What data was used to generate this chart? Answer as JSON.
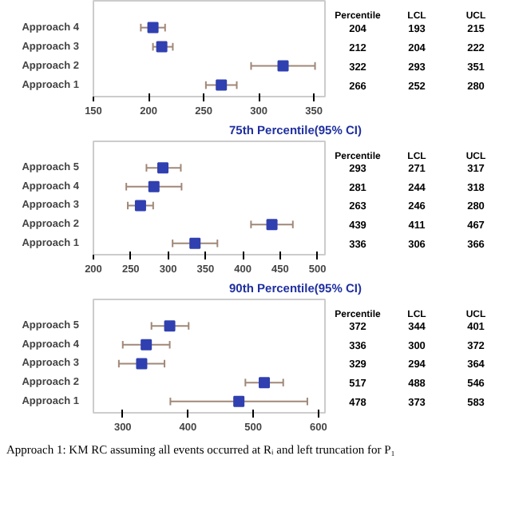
{
  "chart_data": [
    {
      "type": "scatter",
      "orientation": "horizontal",
      "marker": "square",
      "grid": false,
      "categories": [
        "Approach 4",
        "Approach 3",
        "Approach 2",
        "Approach 1"
      ],
      "series": [
        {
          "color": "#3040b0",
          "values": [
            204,
            212,
            322,
            266
          ],
          "errors": [
            [
              193,
              215
            ],
            [
              204,
              222
            ],
            [
              293,
              351
            ],
            [
              252,
              280
            ]
          ]
        }
      ],
      "annotations": [
        "Percentile",
        "LCL",
        "UCL",
        "204",
        "193",
        "215",
        "212",
        "204",
        "222",
        "322",
        "293",
        "351",
        "266",
        "252",
        "280"
      ],
      "xlim": [
        150,
        360
      ],
      "xticks": [
        150,
        200,
        250,
        300,
        350
      ]
    },
    {
      "type": "scatter",
      "orientation": "horizontal",
      "marker": "square",
      "grid": false,
      "title": "75th Percentile(95% CI)",
      "categories": [
        "Approach 5",
        "Approach 4",
        "Approach 3",
        "Approach 2",
        "Approach 1"
      ],
      "series": [
        {
          "color": "#3040b0",
          "values": [
            293,
            281,
            263,
            439,
            336
          ],
          "errors": [
            [
              271,
              317
            ],
            [
              244,
              318
            ],
            [
              246,
              280
            ],
            [
              411,
              467
            ],
            [
              306,
              366
            ]
          ]
        }
      ],
      "annotations": [
        "Percentile",
        "LCL",
        "UCL",
        "293",
        "271",
        "317",
        "281",
        "244",
        "318",
        "263",
        "246",
        "280",
        "439",
        "411",
        "467",
        "336",
        "306",
        "366"
      ],
      "xlim": [
        200,
        510
      ],
      "xticks": [
        200,
        250,
        300,
        350,
        400,
        450,
        500
      ]
    },
    {
      "type": "scatter",
      "orientation": "horizontal",
      "marker": "square",
      "grid": false,
      "title": "90th Percentile(95% CI)",
      "categories": [
        "Approach 5",
        "Approach 4",
        "Approach 3",
        "Approach 2",
        "Approach 1"
      ],
      "series": [
        {
          "color": "#3040b0",
          "values": [
            372,
            336,
            329,
            517,
            478
          ],
          "errors": [
            [
              344,
              401
            ],
            [
              300,
              372
            ],
            [
              294,
              364
            ],
            [
              488,
              546
            ],
            [
              373,
              583
            ]
          ]
        }
      ],
      "annotations": [
        "Percentile",
        "LCL",
        "UCL",
        "372",
        "344",
        "401",
        "336",
        "300",
        "372",
        "329",
        "294",
        "364",
        "517",
        "488",
        "546",
        "478",
        "373",
        "583"
      ],
      "xlim": [
        255,
        610
      ],
      "xticks": [
        300,
        400,
        500,
        600
      ]
    },
    {
      "type": "other",
      "annotations": [
        "Approach 1: KM RC assuming all events occurred at Rᵢ and left truncation for P₁"
      ]
    }
  ]
}
